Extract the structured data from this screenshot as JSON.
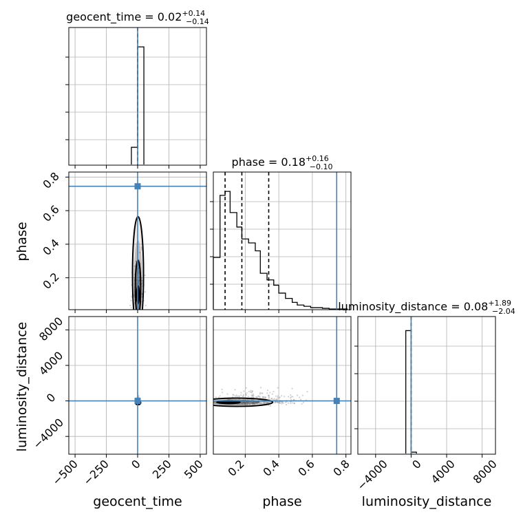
{
  "figure": {
    "axis_labels": {
      "geocent_time": "geocent_time",
      "phase": "phase",
      "luminosity_distance": "luminosity_distance"
    },
    "titles": {
      "geocent_time": {
        "name": "geocent_time",
        "median": "0.02",
        "plus": "+0.14",
        "minus": "−0.14"
      },
      "phase": {
        "name": "phase",
        "median": "0.18",
        "plus": "+0.16",
        "minus": "−0.10"
      },
      "luminosity_distance": {
        "name": "luminosity_distance",
        "median": "0.08",
        "plus": "+1.89",
        "minus": "−2.04"
      }
    },
    "tick_labels": {
      "geocent_time": [
        "−500",
        "−250",
        "0",
        "250",
        "500"
      ],
      "phase": [
        "0.2",
        "0.4",
        "0.6",
        "0.8"
      ],
      "luminosity_distance": [
        "−4000",
        "0",
        "4000",
        "8000"
      ]
    }
  },
  "chart_data": {
    "type": "corner",
    "parameters": [
      "geocent_time",
      "phase",
      "luminosity_distance"
    ],
    "ranges": {
      "geocent_time": [
        -550,
        550
      ],
      "phase": [
        0.01,
        0.83
      ],
      "luminosity_distance": [
        -6000,
        9500
      ]
    },
    "ticks": {
      "geocent_time": [
        -500,
        -250,
        0,
        250,
        500
      ],
      "phase": [
        0.2,
        0.4,
        0.6,
        0.8
      ],
      "luminosity_distance": [
        -4000,
        0,
        4000,
        8000
      ]
    },
    "truths": {
      "geocent_time": 0,
      "phase": 0.745,
      "luminosity_distance": 0
    },
    "quantile_lines": {
      "geocent_time": [
        0.02
      ],
      "phase": [
        0.08,
        0.18,
        0.34
      ],
      "luminosity_distance": [
        0.08
      ]
    },
    "histograms": {
      "geocent_time": {
        "bin_edges": [
          -50,
          0,
          50
        ],
        "counts": [
          0.13,
          0.89
        ]
      },
      "phase": {
        "bin_edges": [
          0.01,
          0.05,
          0.08,
          0.11,
          0.15,
          0.18,
          0.22,
          0.26,
          0.29,
          0.33,
          0.37,
          0.4,
          0.44,
          0.48,
          0.51,
          0.55,
          0.59,
          0.62,
          0.66,
          0.7,
          0.73,
          0.77,
          0.81
        ],
        "counts": [
          0.39,
          0.86,
          0.89,
          0.73,
          0.62,
          0.53,
          0.5,
          0.44,
          0.27,
          0.22,
          0.18,
          0.12,
          0.08,
          0.05,
          0.03,
          0.02,
          0.01,
          0.01,
          0.005,
          0,
          0,
          0
        ]
      },
      "luminosity_distance": {
        "bin_edges": [
          -600,
          0,
          600
        ],
        "counts": [
          0.93,
          0.01
        ]
      }
    },
    "grid": true,
    "levels_shown": "2D density contours with grey scatter of samples"
  }
}
